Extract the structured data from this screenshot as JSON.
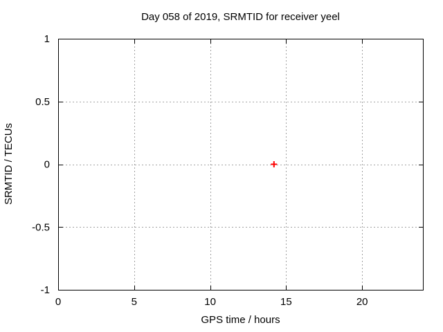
{
  "chart_data": {
    "type": "scatter",
    "title": "Day 058 of 2019, SRMTID for receiver yeel",
    "xlabel": "GPS time / hours",
    "ylabel": "SRMTID / TECUs",
    "xlim": [
      0,
      24
    ],
    "ylim": [
      -1,
      1
    ],
    "xticks": {
      "values": [
        0,
        5,
        10,
        15,
        20
      ],
      "labels": [
        "0",
        "5",
        "10",
        "15",
        "20"
      ]
    },
    "yticks": {
      "values": [
        -1,
        -0.5,
        0,
        0.5,
        1
      ],
      "labels": [
        "-1",
        "-0.5",
        "0",
        "0.5",
        "1"
      ]
    },
    "grid": true,
    "grid_style": "dotted",
    "legend": "none",
    "border": "box-with-mirrored-inward-ticks",
    "series": [
      {
        "name": "SRMTID",
        "marker": "plus",
        "color": "#ff0000",
        "points": [
          {
            "x": 14.2,
            "y": 0
          }
        ]
      }
    ],
    "colors": {
      "background": "#ffffff",
      "axis": "#000000",
      "text": "#000000",
      "grid": "#a0a0a0",
      "point": "#ff0000"
    }
  }
}
